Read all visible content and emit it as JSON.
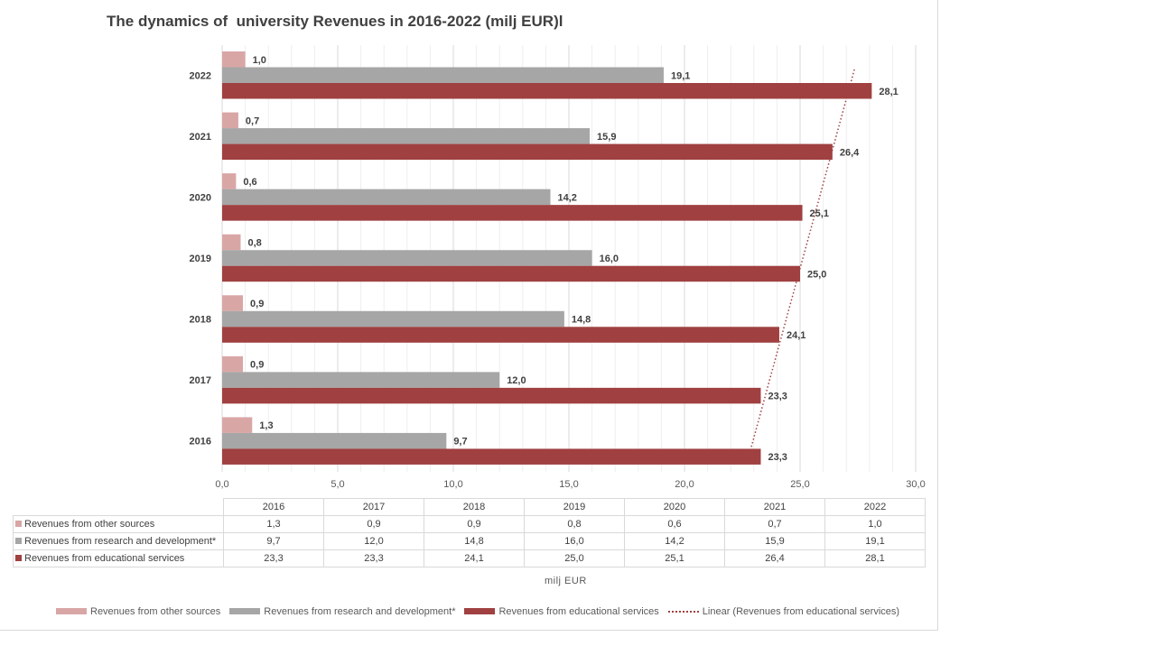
{
  "chart_data": {
    "type": "bar",
    "orientation": "horizontal",
    "title": "The dynamics of  university Revenues in 2016-2022 (milj EUR)l",
    "xlabel": "milj  EUR",
    "xlim": [
      0,
      30
    ],
    "x_ticks": [
      "0,0",
      "5,0",
      "10,0",
      "15,0",
      "20,0",
      "25,0",
      "30,0"
    ],
    "categories": [
      "2016",
      "2017",
      "2018",
      "2019",
      "2020",
      "2021",
      "2022"
    ],
    "series": [
      {
        "name": "Revenues from other sources",
        "color": "#d9a6a6",
        "values": [
          1.3,
          0.9,
          0.9,
          0.8,
          0.6,
          0.7,
          1.0
        ],
        "labels": [
          "1,3",
          "0,9",
          "0,9",
          "0,8",
          "0,6",
          "0,7",
          "1,0"
        ]
      },
      {
        "name": "Revenues from research and development*",
        "color": "#a6a6a6",
        "values": [
          9.7,
          12.0,
          14.8,
          16.0,
          14.2,
          15.9,
          19.1
        ],
        "labels": [
          "9,7",
          "12,0",
          "14,8",
          "16,0",
          "14,2",
          "15,9",
          "19,1"
        ]
      },
      {
        "name": "Revenues from educational services",
        "color": "#a04040",
        "values": [
          23.3,
          23.3,
          24.1,
          25.0,
          25.1,
          26.4,
          28.1
        ],
        "labels": [
          "23,3",
          "23,3",
          "24,1",
          "25,0",
          "25,1",
          "26,4",
          "28,1"
        ]
      }
    ],
    "trendline": {
      "name": "Linear (Revenues from educational services)",
      "color": "#a04040",
      "style": "dotted"
    },
    "grid": "vertical",
    "legend_position": "bottom",
    "data_table": true
  }
}
